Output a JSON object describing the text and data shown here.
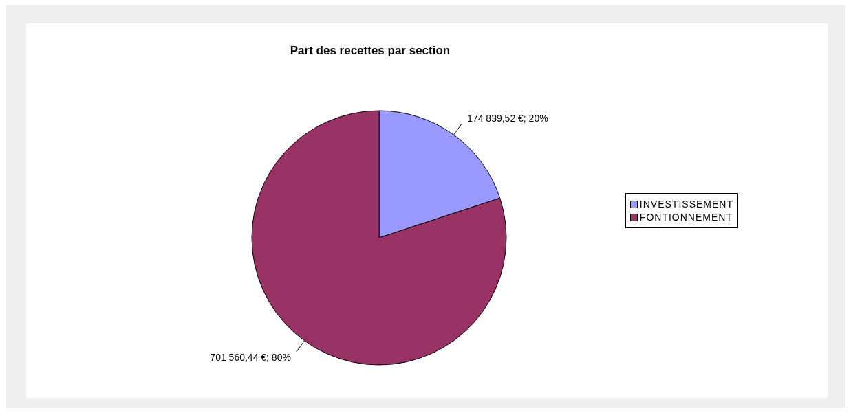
{
  "chart_data": {
    "type": "pie",
    "title": "Part des recettes par section",
    "categories": [
      "INVESTISSEMENT",
      "FONTIONNEMENT"
    ],
    "values": [
      174839.52,
      701560.44
    ],
    "colors": [
      "#9999ff",
      "#993366"
    ],
    "value_labels": [
      "174 839,52 €; 20%",
      "701 560,44 €; 80%"
    ],
    "legend": "right"
  }
}
